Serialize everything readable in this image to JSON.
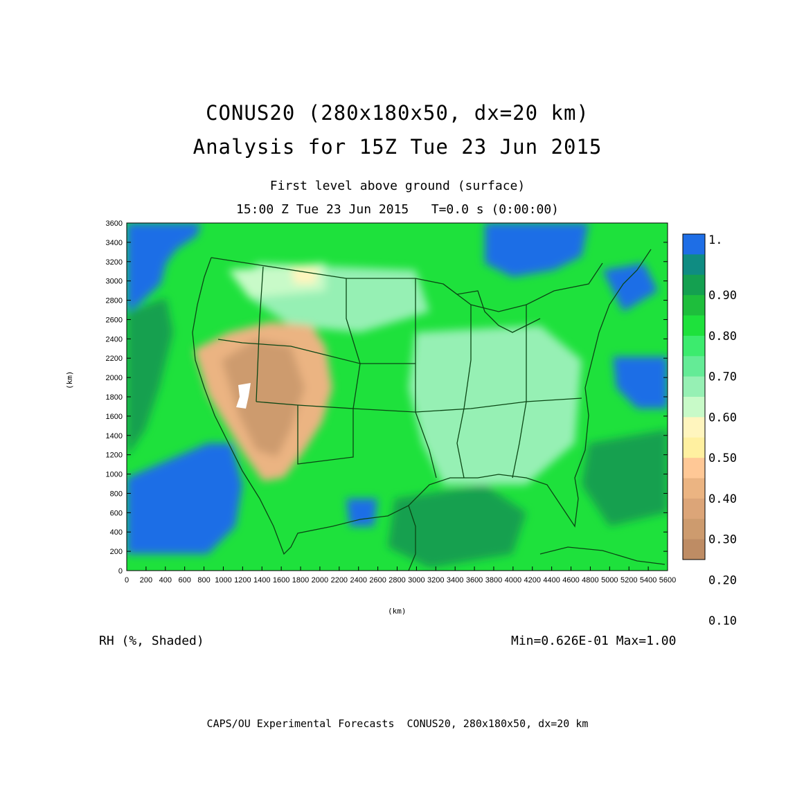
{
  "title_line1": "CONUS20 (280x180x50, dx=20 km)",
  "title_line2": "Analysis for 15Z Tue 23 Jun 2015",
  "subtitle_line1": "First level above ground (surface)",
  "subtitle_line2": "15:00 Z Tue 23 Jun 2015   T=0.0 s (0:00:00)",
  "axes": {
    "x_label": "(km)",
    "y_label": "(km)",
    "x_ticks": [
      "0",
      "200",
      "400",
      "600",
      "800",
      "1000",
      "1200",
      "1400",
      "1600",
      "1800",
      "2000",
      "2200",
      "2400",
      "2600",
      "2800",
      "3000",
      "3200",
      "3400",
      "3600",
      "3800",
      "4000",
      "4200",
      "4400",
      "4600",
      "4800",
      "5000",
      "5200",
      "5400",
      "5600"
    ],
    "y_ticks": [
      "0",
      "200",
      "400",
      "600",
      "800",
      "1000",
      "1200",
      "1400",
      "1600",
      "1800",
      "2000",
      "2200",
      "2400",
      "2600",
      "2800",
      "3000",
      "3200",
      "3400",
      "3600"
    ],
    "x_range_km": [
      0,
      5600
    ],
    "y_range_km": [
      0,
      3600
    ]
  },
  "variable_label": "RH (%, Shaded)",
  "min_max": "Min=0.626E-01 Max=1.00",
  "footer": "CAPS/OU Experimental Forecasts  CONUS20, 280x180x50, dx=20 km",
  "colorbar": {
    "labels": [
      "1.",
      "0.90",
      "0.80",
      "0.70",
      "0.60",
      "0.50",
      "0.40",
      "0.30",
      "0.20",
      "0.10"
    ],
    "colors": [
      "#1e6ee6",
      "#0f8c82",
      "#14a050",
      "#1ebe3c",
      "#1ee13c",
      "#3ceb6e",
      "#64eb96",
      "#96f0b4",
      "#c8fac8",
      "#fff5be",
      "#fff0a0",
      "#ffc896",
      "#ebb482",
      "#dca578",
      "#cd9b6e",
      "#be8c64"
    ]
  },
  "map_colors": {
    "ocean_wet": "#1e6ee6",
    "very_moist": "#14a050",
    "moist": "#1ee13c",
    "moderate": "#64eb96",
    "semi_dry": "#96f0b4",
    "pale": "#c8fac8",
    "light_dry": "#fff5be",
    "dry": "#ebb482",
    "very_dry": "#cd9b6e",
    "borders": "#0a4614",
    "missing": "#ffffff"
  }
}
